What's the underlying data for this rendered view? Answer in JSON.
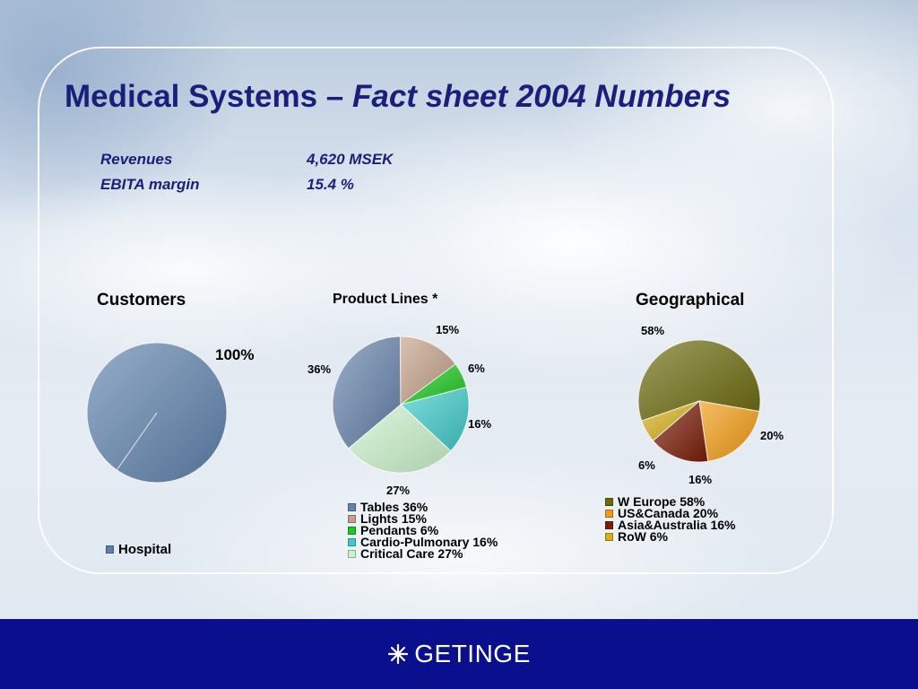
{
  "title": {
    "main": "Medical Systems – ",
    "italic": "Fact sheet 2004 Numbers"
  },
  "facts": [
    {
      "label": "Revenues",
      "value": "4,620 MSEK"
    },
    {
      "label": "EBITA margin",
      "value": "15.4  %"
    }
  ],
  "chart_data": [
    {
      "type": "pie",
      "title": "Customers",
      "categories": [
        "Hospital"
      ],
      "values": [
        100
      ],
      "labels": [
        "100%"
      ],
      "legend": [
        "Hospital"
      ],
      "colors": [
        "#5f82ad"
      ]
    },
    {
      "type": "pie",
      "title": "Product Lines *",
      "categories": [
        "Tables",
        "Lights",
        "Pendants",
        "Cardio-Pulmonary",
        "Critical Care"
      ],
      "values": [
        36,
        15,
        6,
        16,
        27
      ],
      "labels": [
        "36%",
        "15%",
        "6%",
        "16%",
        "27%"
      ],
      "legend": [
        "Tables 36%",
        "Lights 15%",
        "Pendants 6%",
        "Cardio-Pulmonary 16%",
        "Critical Care 27%"
      ],
      "colors": [
        "#6583ab",
        "#c4a088",
        "#1ec81e",
        "#3fcaca",
        "#ccf2cc"
      ]
    },
    {
      "type": "pie",
      "title": "Geographical",
      "categories": [
        "W Europe",
        "US&Canada",
        "Asia&Australia",
        "RoW"
      ],
      "values": [
        58,
        20,
        16,
        6
      ],
      "labels": [
        "58%",
        "20%",
        "16%",
        "6%"
      ],
      "legend": [
        "W Europe 58%",
        "US&Canada 20%",
        "Asia&Australia 16%",
        "RoW 6%"
      ],
      "colors": [
        "#6b6a0c",
        "#f29a10",
        "#7a1c06",
        "#d6b01a"
      ]
    }
  ],
  "footer": {
    "brand": "GETINGE",
    "logo_icon": "snowflake-asterisk-icon",
    "background": "#0a0f8e"
  }
}
